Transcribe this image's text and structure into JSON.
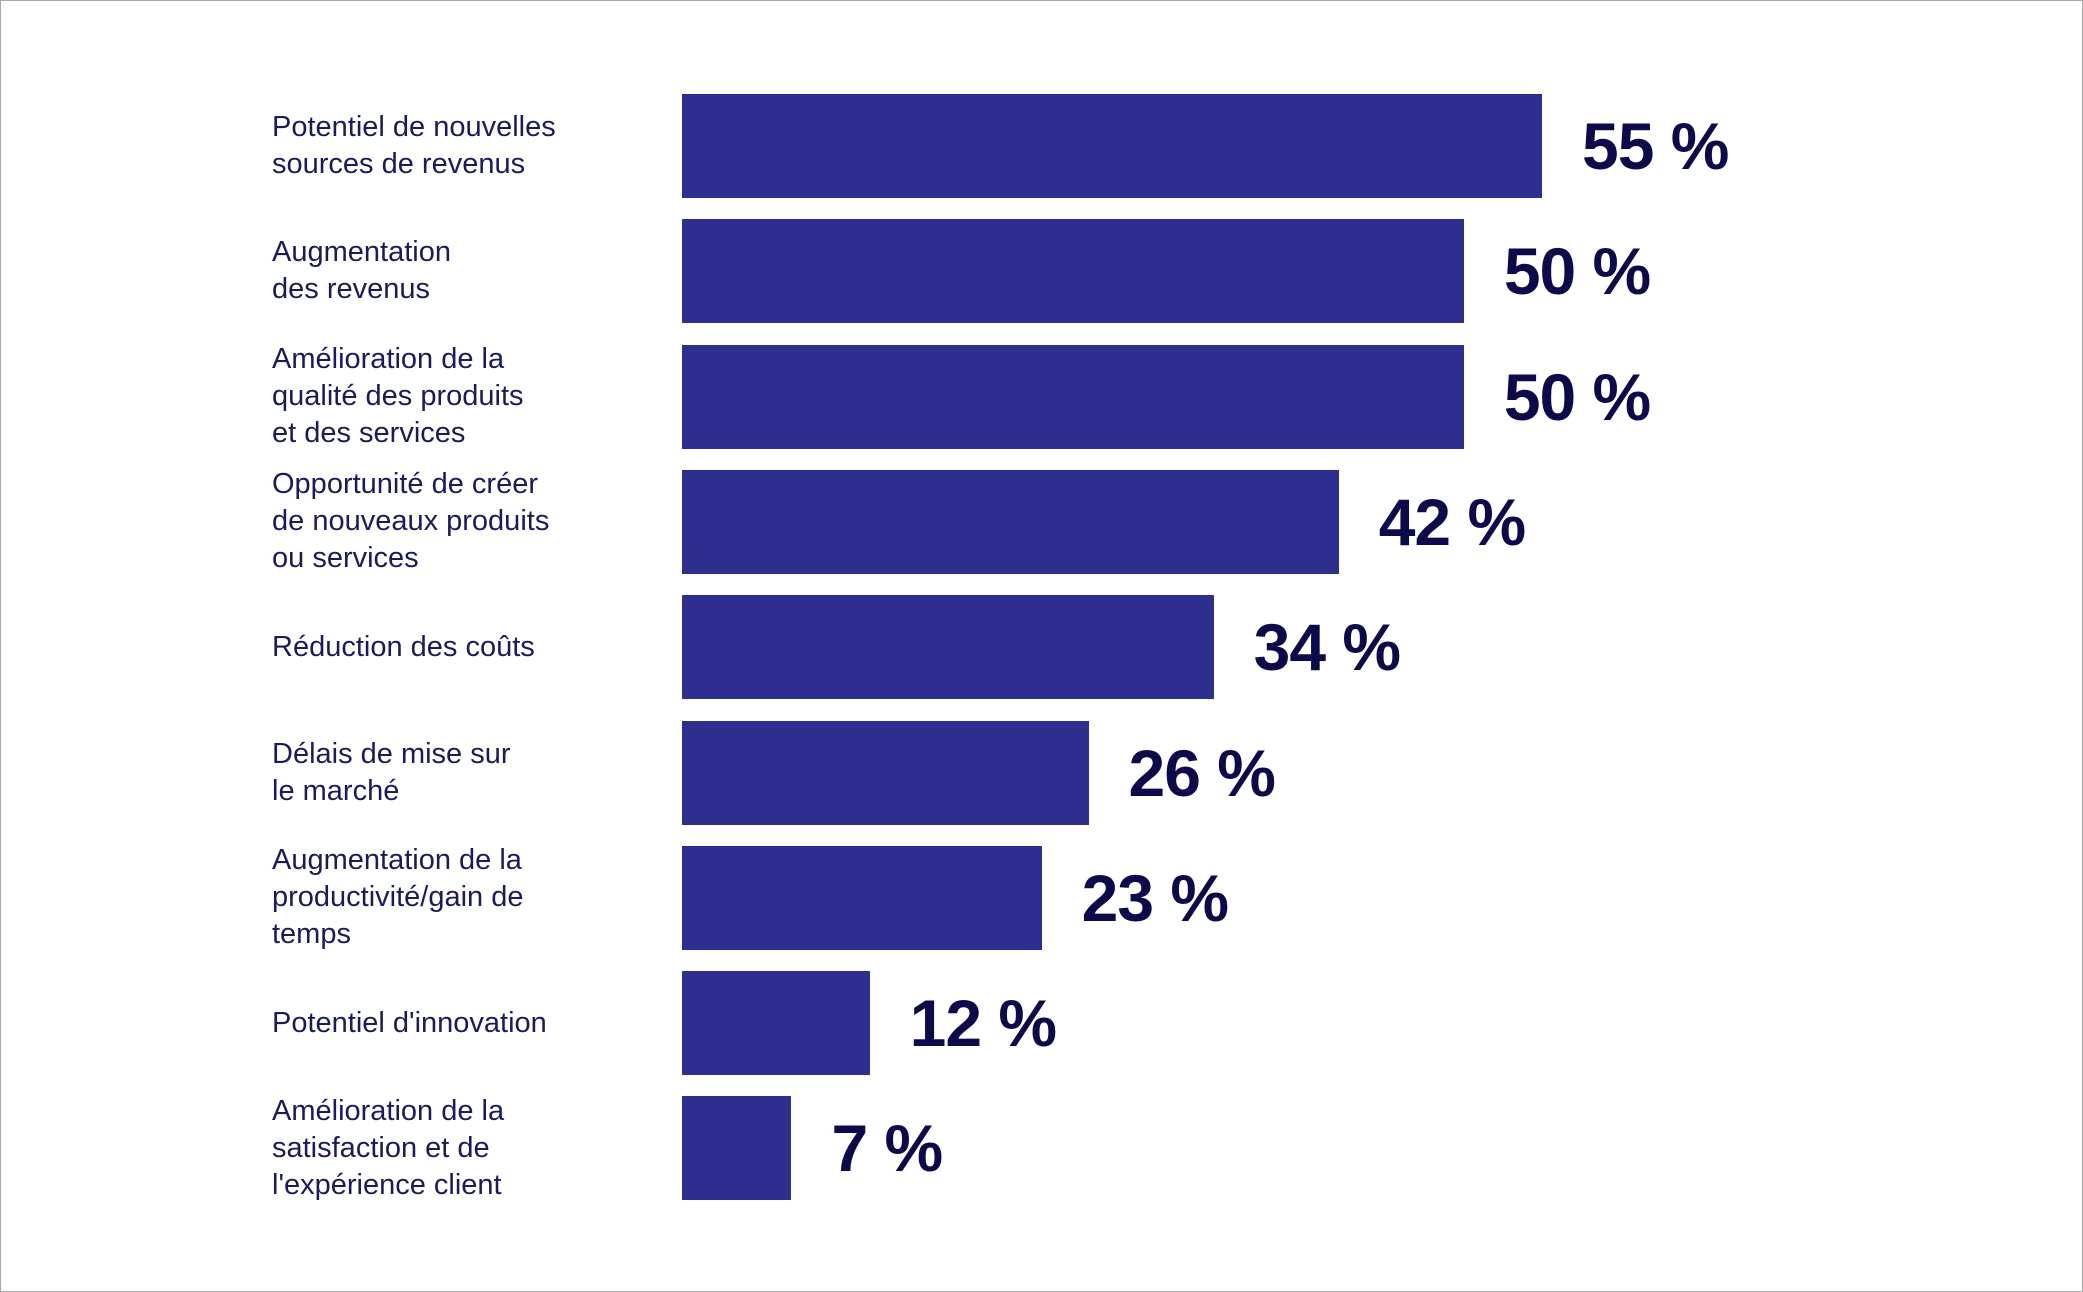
{
  "chart_data": {
    "type": "bar",
    "orientation": "horizontal",
    "title": "",
    "xlabel": "",
    "ylabel": "",
    "categories": [
      "Potentiel de nouvelles\nsources de revenus",
      "Augmentation\ndes revenus",
      "Amélioration de la\nqualité des produits\net des services",
      "Opportunité de créer\nde nouveaux produits\nou services",
      "Réduction des coûts",
      "Délais de mise sur\nle marché",
      "Augmentation de la\nproductivité/gain de\ntemps",
      "Potentiel d'innovation",
      "Amélioration de la\nsatisfaction et de\nl'expérience client"
    ],
    "values": [
      55,
      50,
      50,
      42,
      34,
      26,
      23,
      12,
      7
    ],
    "value_labels": [
      "55 %",
      "50 %",
      "50 %",
      "42 %",
      "34 %",
      "26 %",
      "23 %",
      "12 %",
      "7 %"
    ],
    "unit": "%",
    "xlim": [
      0,
      55
    ],
    "grid": false,
    "bar_color": "#2e2e8f",
    "value_label_color": "#0c0a4a"
  }
}
